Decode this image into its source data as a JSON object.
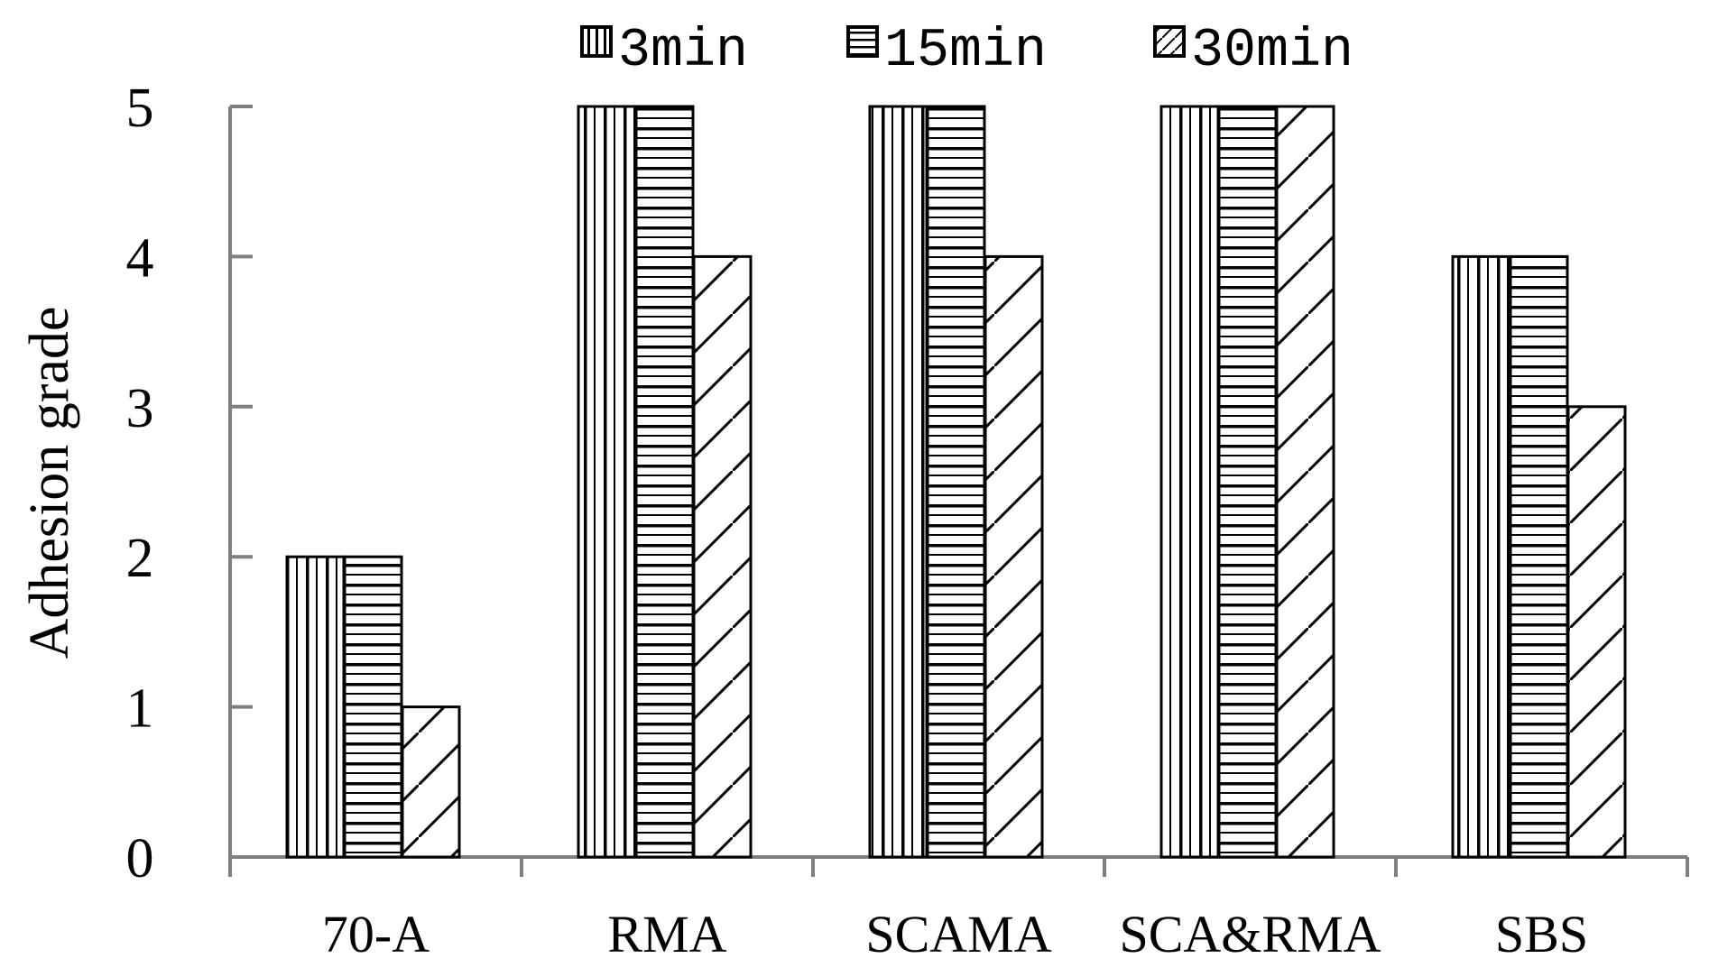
{
  "chart_data": {
    "type": "bar",
    "title": "",
    "xlabel": "",
    "ylabel": "Adhesion grade",
    "ylim": [
      0,
      5
    ],
    "yticks": [
      "0",
      "1",
      "2",
      "3",
      "4",
      "5"
    ],
    "categories": [
      "70-A",
      "RMA",
      "SCAMA",
      "SCA&RMA",
      "SBS"
    ],
    "series": [
      {
        "name": "3min",
        "pattern": "vertical-lines",
        "values": [
          2,
          5,
          5,
          5,
          4
        ]
      },
      {
        "name": "15min",
        "pattern": "horizontal-lines",
        "values": [
          2,
          5,
          5,
          5,
          4
        ]
      },
      {
        "name": "30min",
        "pattern": "zigzag",
        "values": [
          1,
          4,
          4,
          5,
          3
        ]
      }
    ],
    "legend_position": "top",
    "grid": false,
    "colors": {
      "axis": "#7f7f7f",
      "bar_stroke": "#000000",
      "bar_fill": "#ffffff"
    }
  }
}
